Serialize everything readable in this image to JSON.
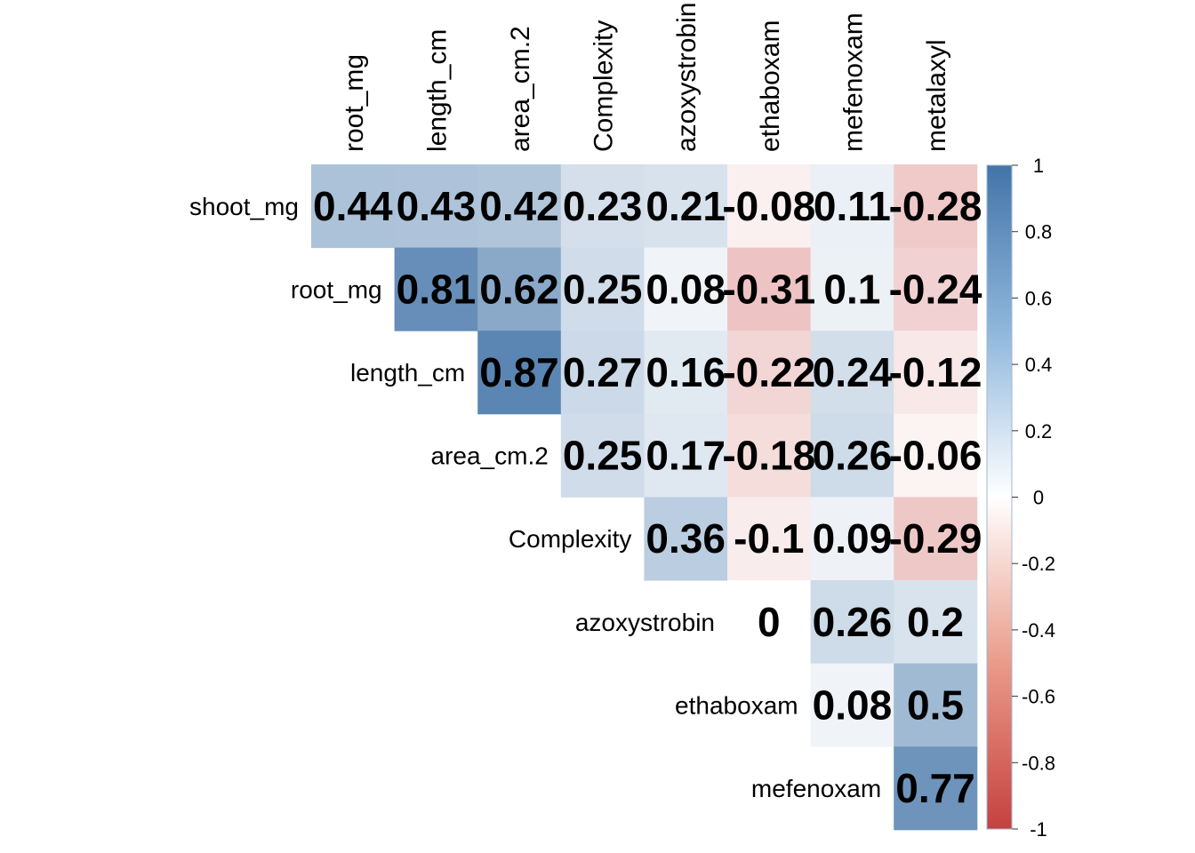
{
  "chart_data": {
    "type": "heatmap",
    "columns": [
      "root_mg",
      "length_cm",
      "area_cm.2",
      "Complexity",
      "azoxystrobin",
      "ethaboxam",
      "mefenoxam",
      "metalaxyl"
    ],
    "rows": [
      "shoot_mg",
      "root_mg",
      "length_cm",
      "area_cm.2",
      "Complexity",
      "azoxystrobin",
      "ethaboxam",
      "mefenoxam"
    ],
    "cells": [
      {
        "row": "shoot_mg",
        "col": "root_mg",
        "value": 0.44,
        "label": "0.44"
      },
      {
        "row": "shoot_mg",
        "col": "length_cm",
        "value": 0.43,
        "label": "0.43"
      },
      {
        "row": "shoot_mg",
        "col": "area_cm.2",
        "value": 0.42,
        "label": "0.42"
      },
      {
        "row": "shoot_mg",
        "col": "Complexity",
        "value": 0.23,
        "label": "0.23"
      },
      {
        "row": "shoot_mg",
        "col": "azoxystrobin",
        "value": 0.21,
        "label": "0.21"
      },
      {
        "row": "shoot_mg",
        "col": "ethaboxam",
        "value": -0.08,
        "label": "-0.08"
      },
      {
        "row": "shoot_mg",
        "col": "mefenoxam",
        "value": 0.11,
        "label": "0.11"
      },
      {
        "row": "shoot_mg",
        "col": "metalaxyl",
        "value": -0.28,
        "label": "-0.28"
      },
      {
        "row": "root_mg",
        "col": "length_cm",
        "value": 0.81,
        "label": "0.81"
      },
      {
        "row": "root_mg",
        "col": "area_cm.2",
        "value": 0.62,
        "label": "0.62"
      },
      {
        "row": "root_mg",
        "col": "Complexity",
        "value": 0.25,
        "label": "0.25"
      },
      {
        "row": "root_mg",
        "col": "azoxystrobin",
        "value": 0.08,
        "label": "0.08"
      },
      {
        "row": "root_mg",
        "col": "ethaboxam",
        "value": -0.31,
        "label": "-0.31"
      },
      {
        "row": "root_mg",
        "col": "mefenoxam",
        "value": 0.1,
        "label": "0.1"
      },
      {
        "row": "root_mg",
        "col": "metalaxyl",
        "value": -0.24,
        "label": "-0.24"
      },
      {
        "row": "length_cm",
        "col": "area_cm.2",
        "value": 0.87,
        "label": "0.87"
      },
      {
        "row": "length_cm",
        "col": "Complexity",
        "value": 0.27,
        "label": "0.27"
      },
      {
        "row": "length_cm",
        "col": "azoxystrobin",
        "value": 0.16,
        "label": "0.16"
      },
      {
        "row": "length_cm",
        "col": "ethaboxam",
        "value": -0.22,
        "label": "-0.22"
      },
      {
        "row": "length_cm",
        "col": "mefenoxam",
        "value": 0.24,
        "label": "0.24"
      },
      {
        "row": "length_cm",
        "col": "metalaxyl",
        "value": -0.12,
        "label": "-0.12"
      },
      {
        "row": "area_cm.2",
        "col": "Complexity",
        "value": 0.25,
        "label": "0.25"
      },
      {
        "row": "area_cm.2",
        "col": "azoxystrobin",
        "value": 0.17,
        "label": "0.17"
      },
      {
        "row": "area_cm.2",
        "col": "ethaboxam",
        "value": -0.18,
        "label": "-0.18"
      },
      {
        "row": "area_cm.2",
        "col": "mefenoxam",
        "value": 0.26,
        "label": "0.26"
      },
      {
        "row": "area_cm.2",
        "col": "metalaxyl",
        "value": -0.06,
        "label": "-0.06"
      },
      {
        "row": "Complexity",
        "col": "azoxystrobin",
        "value": 0.36,
        "label": "0.36"
      },
      {
        "row": "Complexity",
        "col": "ethaboxam",
        "value": -0.1,
        "label": "-0.1"
      },
      {
        "row": "Complexity",
        "col": "mefenoxam",
        "value": 0.09,
        "label": "0.09"
      },
      {
        "row": "Complexity",
        "col": "metalaxyl",
        "value": -0.29,
        "label": "-0.29"
      },
      {
        "row": "azoxystrobin",
        "col": "ethaboxam",
        "value": 0,
        "label": "0"
      },
      {
        "row": "azoxystrobin",
        "col": "mefenoxam",
        "value": 0.26,
        "label": "0.26"
      },
      {
        "row": "azoxystrobin",
        "col": "metalaxyl",
        "value": 0.2,
        "label": "0.2"
      },
      {
        "row": "ethaboxam",
        "col": "mefenoxam",
        "value": 0.08,
        "label": "0.08"
      },
      {
        "row": "ethaboxam",
        "col": "metalaxyl",
        "value": 0.5,
        "label": "0.5"
      },
      {
        "row": "mefenoxam",
        "col": "metalaxyl",
        "value": 0.77,
        "label": "0.77"
      }
    ],
    "color_scale": {
      "range": [
        -1,
        1
      ],
      "ticks": [
        1,
        0.8,
        0.6,
        0.4,
        0.2,
        0,
        -0.2,
        -0.4,
        -0.6,
        -0.8,
        -1
      ],
      "tick_labels": [
        "1",
        "0.8",
        "0.6",
        "0.4",
        "0.2",
        "0",
        "-0.2",
        "-0.4",
        "-0.6",
        "-0.8",
        "-1"
      ],
      "color_negative": "#c5413f",
      "color_zero": "#ffffff",
      "color_positive": "#4374a8",
      "legend_position": "right"
    },
    "layout_style": "upper-triangle",
    "grid": false
  }
}
